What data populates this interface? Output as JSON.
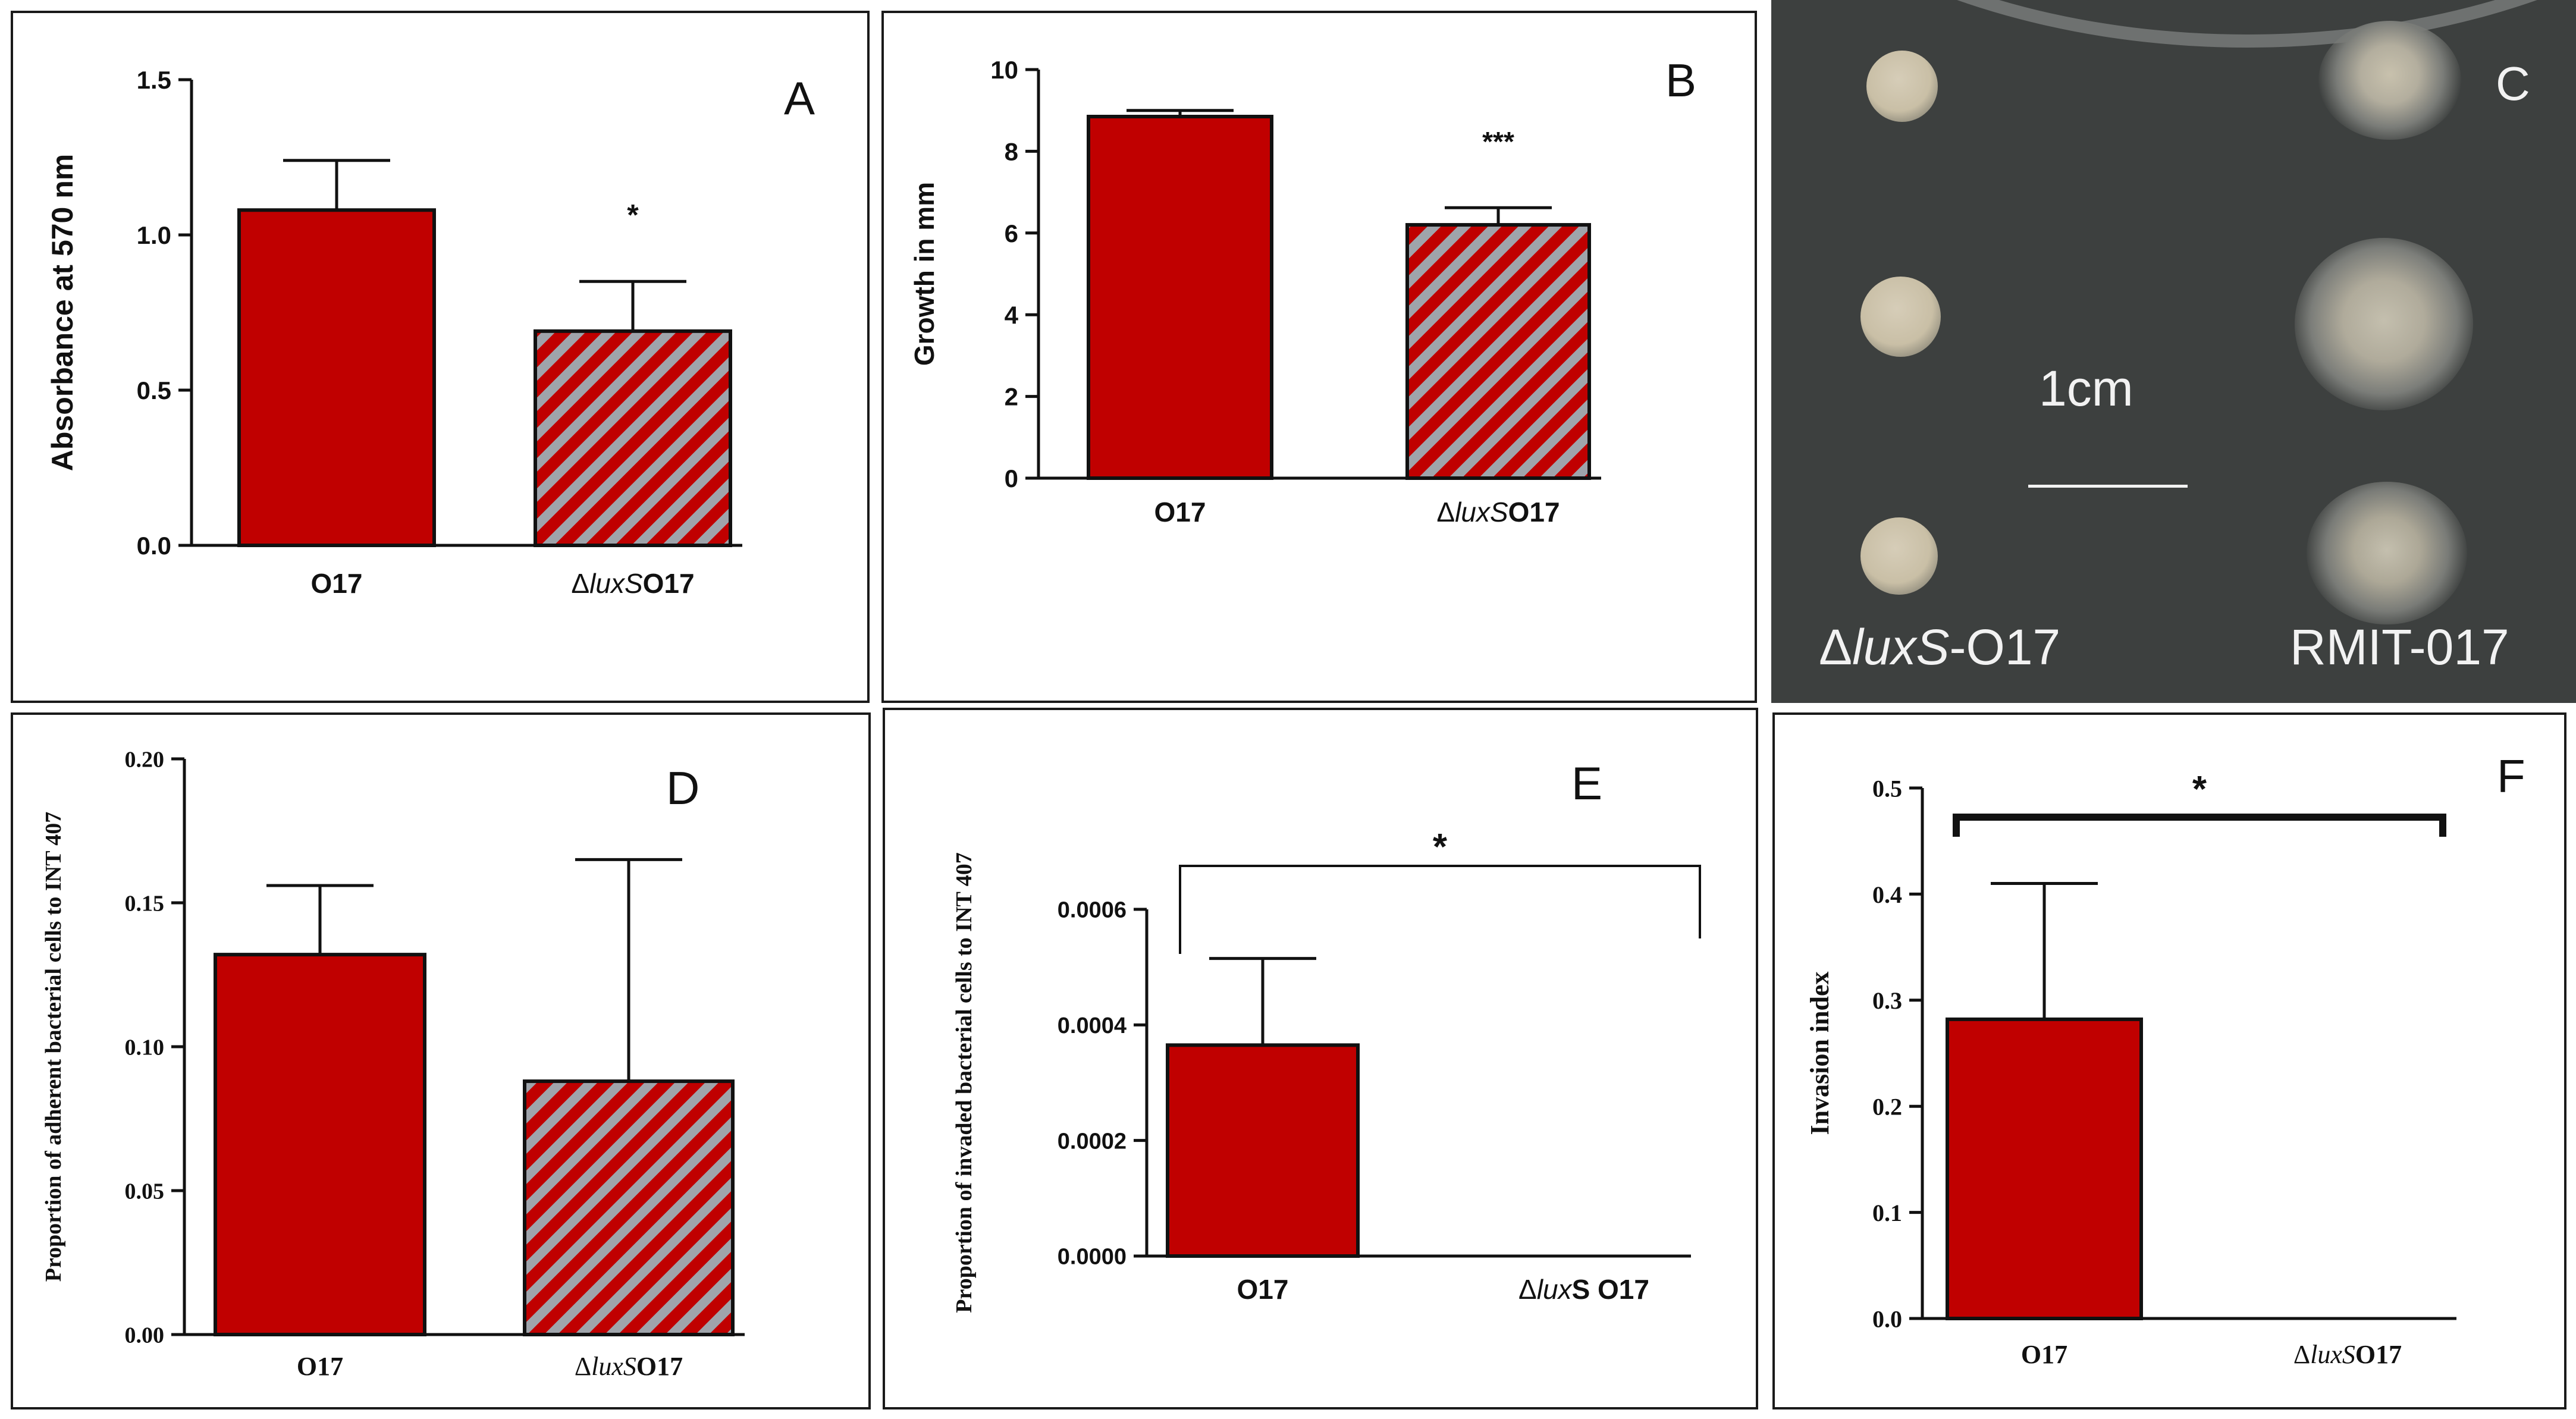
{
  "colors": {
    "wildtype_fill": "#c00000",
    "hatch_stripe": "#9fa4ab",
    "axis": "#111111",
    "plate_background": "#3d403f",
    "plate_text": "#f2f2f2"
  },
  "chart_data": [
    {
      "id": "A",
      "type": "bar",
      "panel_letter": "A",
      "title": "",
      "xlabel": "",
      "ylabel": "Absorbance at 570 nm",
      "ylim": [
        0,
        1.5
      ],
      "yticks": [
        "0.0",
        "0.5",
        "1.0",
        "1.5"
      ],
      "tick_values": [
        0,
        0.5,
        1.0,
        1.5
      ],
      "categories": [
        {
          "delta": "",
          "italic": "",
          "suffix": "O17",
          "value": 1.08,
          "error": 0.16,
          "pattern": "solid"
        },
        {
          "delta": "Δ",
          "italic": "luxS",
          "suffix": "O17",
          "value": 0.69,
          "error": 0.16,
          "pattern": "hatched"
        }
      ],
      "annotations": [
        {
          "text": "*",
          "over_category": 1
        }
      ]
    },
    {
      "id": "B",
      "type": "bar",
      "panel_letter": "B",
      "title": "",
      "xlabel": "",
      "ylabel": "Growth in mm",
      "ylim": [
        0,
        10
      ],
      "yticks": [
        "0",
        "2",
        "4",
        "6",
        "8",
        "10"
      ],
      "tick_values": [
        0,
        2,
        4,
        6,
        8,
        10
      ],
      "categories": [
        {
          "delta": "",
          "italic": "",
          "suffix": "O17",
          "value": 8.85,
          "error": 0.15,
          "pattern": "solid"
        },
        {
          "delta": "Δ",
          "italic": "luxS",
          "suffix": "O17",
          "value": 6.2,
          "error": 0.42,
          "pattern": "hatched"
        }
      ],
      "annotations": [
        {
          "text": "***",
          "over_category": 1
        }
      ]
    },
    {
      "id": "D",
      "type": "bar",
      "panel_letter": "D",
      "title": "",
      "xlabel": "",
      "ylabel": "Proportion of adherent bacterial cells to INT 407",
      "ylim": [
        0,
        0.2
      ],
      "yticks": [
        "0.00",
        "0.05",
        "0.10",
        "0.15",
        "0.20"
      ],
      "tick_values": [
        0,
        0.05,
        0.1,
        0.15,
        0.2
      ],
      "categories": [
        {
          "delta": "",
          "italic": "",
          "suffix": "O17",
          "value": 0.132,
          "error": 0.024,
          "pattern": "solid"
        },
        {
          "delta": "Δ",
          "italic": "luxS",
          "suffix": "O17",
          "value": 0.088,
          "error": 0.077,
          "pattern": "hatched"
        }
      ],
      "annotations": []
    },
    {
      "id": "E",
      "type": "bar",
      "panel_letter": "E",
      "title": "",
      "xlabel": "",
      "ylabel": "Proportion of invaded bacterial cells to INT 407",
      "ylim": [
        0,
        0.0006
      ],
      "yticks": [
        "0.0000",
        "0.0002",
        "0.0004",
        "0.0006"
      ],
      "tick_values": [
        0,
        0.0002,
        0.0004,
        0.0006
      ],
      "categories": [
        {
          "delta": "",
          "italic": "",
          "suffix": "O17",
          "value": 0.000365,
          "error": 0.00015,
          "pattern": "solid"
        },
        {
          "delta": "Δ",
          "italic": "lux",
          "suffix": "S O17",
          "value": 0,
          "error": 0,
          "pattern": "hatched"
        }
      ],
      "annotations": [
        {
          "text": "*",
          "bracket": true
        }
      ]
    },
    {
      "id": "F",
      "type": "bar",
      "panel_letter": "F",
      "title": "",
      "xlabel": "",
      "ylabel": "Invasion index",
      "ylim": [
        0,
        0.5
      ],
      "yticks": [
        "0.0",
        "0.1",
        "0.2",
        "0.3",
        "0.4",
        "0.5"
      ],
      "tick_values": [
        0,
        0.1,
        0.2,
        0.3,
        0.4,
        0.5
      ],
      "categories": [
        {
          "delta": "",
          "italic": "",
          "suffix": "O17",
          "value": 0.282,
          "error": 0.128,
          "pattern": "solid"
        },
        {
          "delta": "Δ",
          "italic": "luxS",
          "suffix": "O17",
          "value": 0,
          "error": 0,
          "pattern": "hatched"
        }
      ],
      "annotations": [
        {
          "text": "*",
          "bracket": true
        }
      ]
    }
  ],
  "photo_panel": {
    "panel_letter": "C",
    "scale_label": "1cm",
    "left_strain": {
      "delta": "Δ",
      "italic": "luxS",
      "suffix": "-O17"
    },
    "right_strain": "RMIT-017"
  }
}
